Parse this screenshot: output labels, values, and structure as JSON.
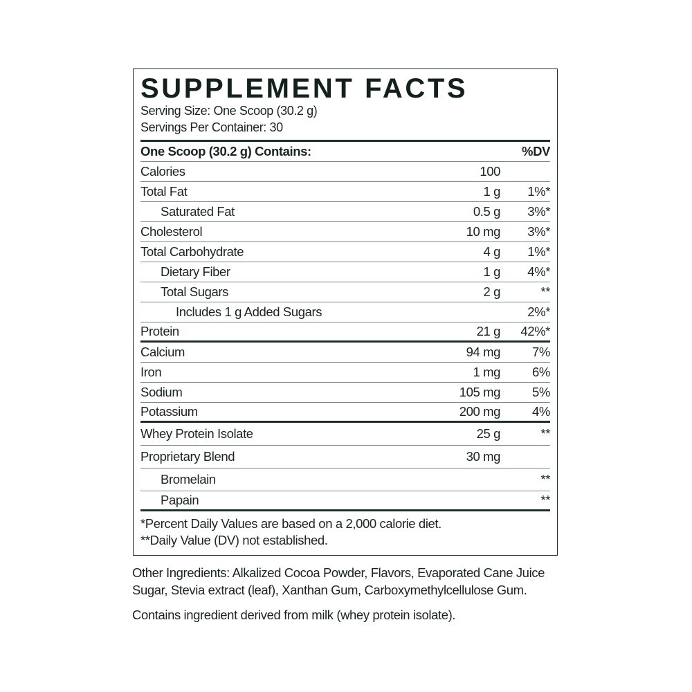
{
  "label": {
    "title": "SUPPLEMENT FACTS",
    "serving_size": "Serving Size: One Scoop (30.2 g)",
    "servings_per_container": "Servings Per Container: 30",
    "header": {
      "name": "One Scoop (30.2 g) Contains:",
      "dv": "%DV"
    },
    "rows": [
      {
        "name": "Calories",
        "amount": "100",
        "dv": "",
        "indent": 0
      },
      {
        "name": "Total Fat",
        "amount": "1 g",
        "dv": "1%*",
        "indent": 0
      },
      {
        "name": "Saturated Fat",
        "amount": "0.5 g",
        "dv": "3%*",
        "indent": 1
      },
      {
        "name": "Cholesterol",
        "amount": "10 mg",
        "dv": "3%*",
        "indent": 0
      },
      {
        "name": "Total Carbohydrate",
        "amount": "4 g",
        "dv": "1%*",
        "indent": 0
      },
      {
        "name": "Dietary Fiber",
        "amount": "1 g",
        "dv": "4%*",
        "indent": 1
      },
      {
        "name": "Total Sugars",
        "amount": "2 g",
        "dv": "**",
        "indent": 1
      },
      {
        "name": "Includes 1 g Added Sugars",
        "amount": "",
        "dv": "2%*",
        "indent": 2
      },
      {
        "name": "Protein",
        "amount": "21 g",
        "dv": "42%*",
        "indent": 0,
        "thick": true
      },
      {
        "name": "Calcium",
        "amount": "94 mg",
        "dv": "7%",
        "indent": 0
      },
      {
        "name": "Iron",
        "amount": "1 mg",
        "dv": "6%",
        "indent": 0
      },
      {
        "name": "Sodium",
        "amount": "105 mg",
        "dv": "5%",
        "indent": 0
      },
      {
        "name": "Potassium",
        "amount": "200 mg",
        "dv": "4%",
        "indent": 0,
        "thick": true
      },
      {
        "name": "Whey Protein Isolate",
        "amount": "25 g",
        "dv": "**",
        "indent": 0,
        "tall": true
      },
      {
        "name": "Proprietary Blend",
        "amount": "30 mg",
        "dv": "",
        "indent": 0,
        "tall": true
      },
      {
        "name": "Bromelain",
        "amount": "",
        "dv": "**",
        "indent": 1,
        "tall": true
      },
      {
        "name": "Papain",
        "amount": "",
        "dv": "**",
        "indent": 1,
        "thick": true
      },
      {
        "_": ""
      }
    ],
    "footnote_1": "*Percent Daily Values are based on a 2,000 calorie diet.",
    "footnote_2": "**Daily Value (DV) not established."
  },
  "other_ingredients": "Other Ingredients: Alkalized Cocoa Powder, Flavors, Evaporated Cane Juice Sugar, Stevia extract (leaf), Xanthan Gum, Carboxymethylcellulose Gum.",
  "allergen": "Contains ingredient derived from milk (whey protein isolate)."
}
